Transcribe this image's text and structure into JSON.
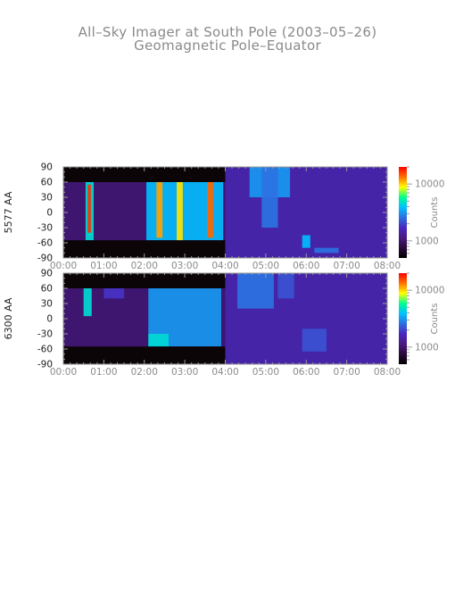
{
  "title": "All–Sky Imager at South Pole (2003–05–26)",
  "subtitle": "Geomagnetic Pole–Equator",
  "colors": {
    "text": "#8a8a8a",
    "axis": "#9a9a9a",
    "tick_label": "#222222",
    "colormap": [
      "#000000",
      "#2a0a3a",
      "#4b1a80",
      "#4a28c0",
      "#2d6fe0",
      "#00c0ff",
      "#00ff90",
      "#ffff00",
      "#ff7000",
      "#ff0000"
    ]
  },
  "chart_data": [
    {
      "type": "heatmap",
      "ylabel": "5577 AA",
      "x_ticks": [
        "00:00",
        "01:00",
        "02:00",
        "03:00",
        "04:00",
        "05:00",
        "06:00",
        "07:00",
        "08:00"
      ],
      "y_ticks": [
        90,
        60,
        30,
        0,
        -30,
        -60,
        -90
      ],
      "xlim_hours": [
        0,
        8
      ],
      "ylim": [
        -90,
        90
      ],
      "colorbar": {
        "label": "Counts",
        "scale": "log",
        "ticks": [
          {
            "label": "10000",
            "value": 10000
          },
          {
            "label": "1000",
            "value": 1000
          }
        ]
      },
      "no_data": [
        {
          "t0": 0,
          "t1": 4,
          "lat0": 60,
          "lat1": 90
        },
        {
          "t0": 0,
          "t1": 4,
          "lat0": -90,
          "lat1": -55
        }
      ],
      "emission": [
        {
          "t0": 0.55,
          "t1": 0.75,
          "lat0": -55,
          "lat1": 60,
          "level": 0.6
        },
        {
          "t0": 0.6,
          "t1": 0.68,
          "lat0": -40,
          "lat1": 55,
          "level": 0.95
        },
        {
          "t0": 2.05,
          "t1": 3.95,
          "lat0": -55,
          "lat1": 60,
          "level": 0.55
        },
        {
          "t0": 2.3,
          "t1": 2.45,
          "lat0": -50,
          "lat1": 60,
          "level": 0.85
        },
        {
          "t0": 2.8,
          "t1": 2.95,
          "lat0": -55,
          "lat1": 60,
          "level": 0.8
        },
        {
          "t0": 3.55,
          "t1": 3.7,
          "lat0": -50,
          "lat1": 60,
          "level": 0.9
        },
        {
          "t0": 4.6,
          "t1": 5.6,
          "lat0": 30,
          "lat1": 90,
          "level": 0.5
        },
        {
          "t0": 4.9,
          "t1": 5.3,
          "lat0": -30,
          "lat1": 90,
          "level": 0.45
        },
        {
          "t0": 5.9,
          "t1": 6.1,
          "lat0": -70,
          "lat1": -45,
          "level": 0.55
        },
        {
          "t0": 6.2,
          "t1": 6.8,
          "lat0": -80,
          "lat1": -70,
          "level": 0.45
        }
      ]
    },
    {
      "type": "heatmap",
      "ylabel": "6300 AA",
      "x_ticks": [
        "00:00",
        "01:00",
        "02:00",
        "03:00",
        "04:00",
        "05:00",
        "06:00",
        "07:00",
        "08:00"
      ],
      "y_ticks": [
        90,
        60,
        30,
        0,
        -30,
        -60,
        -90
      ],
      "xlim_hours": [
        0,
        8
      ],
      "ylim": [
        -90,
        90
      ],
      "colorbar": {
        "label": "Counts",
        "scale": "log",
        "ticks": [
          {
            "label": "10000",
            "value": 10000
          },
          {
            "label": "1000",
            "value": 1000
          }
        ]
      },
      "no_data": [
        {
          "t0": 0,
          "t1": 4,
          "lat0": 60,
          "lat1": 90
        },
        {
          "t0": 0,
          "t1": 4,
          "lat0": -90,
          "lat1": -55
        }
      ],
      "emission": [
        {
          "t0": 0.5,
          "t1": 0.7,
          "lat0": 5,
          "lat1": 60,
          "level": 0.6
        },
        {
          "t0": 1.0,
          "t1": 1.5,
          "lat0": 40,
          "lat1": 60,
          "level": 0.35
        },
        {
          "t0": 2.1,
          "t1": 3.9,
          "lat0": -55,
          "lat1": 60,
          "level": 0.5
        },
        {
          "t0": 2.1,
          "t1": 2.6,
          "lat0": -55,
          "lat1": -30,
          "level": 0.6
        },
        {
          "t0": 4.3,
          "t1": 5.2,
          "lat0": 20,
          "lat1": 90,
          "level": 0.45
        },
        {
          "t0": 5.3,
          "t1": 5.7,
          "lat0": 40,
          "lat1": 90,
          "level": 0.4
        },
        {
          "t0": 5.9,
          "t1": 6.5,
          "lat0": -65,
          "lat1": -20,
          "level": 0.4
        }
      ]
    }
  ]
}
